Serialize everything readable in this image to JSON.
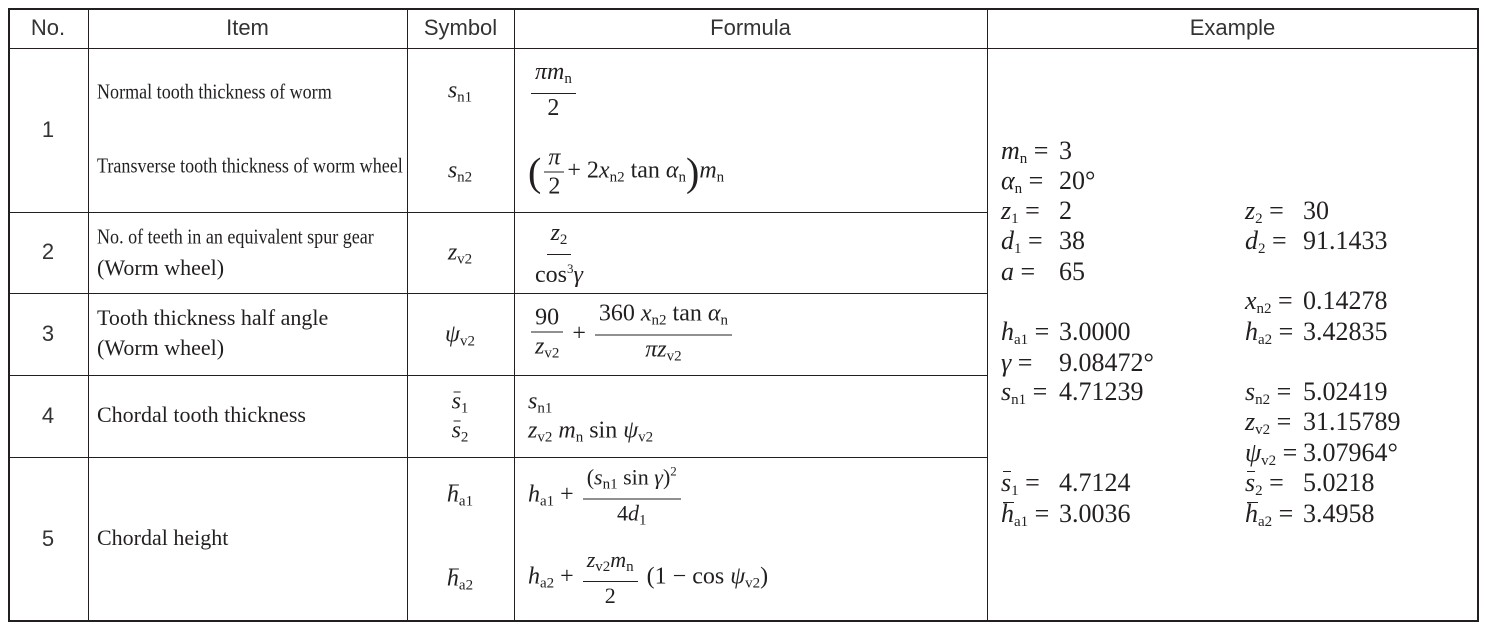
{
  "header": {
    "no": "No.",
    "item": "Item",
    "symbol": "Symbol",
    "formula": "Formula",
    "example": "Example"
  },
  "rows": [
    {
      "no": "1",
      "items": [
        "Normal tooth thickness of worm",
        "Transverse tooth thickness of worm wheel"
      ],
      "symbols": [
        [
          "s",
          "n1"
        ],
        [
          "s",
          "n2"
        ]
      ]
    },
    {
      "no": "2",
      "items": [
        "No. of teeth in an equivalent spur gear",
        "(Worm wheel)"
      ],
      "symbols": [
        [
          "z",
          "v2"
        ]
      ]
    },
    {
      "no": "3",
      "items": [
        "Tooth thickness half angle",
        "(Worm wheel)"
      ],
      "symbols": [
        [
          "ψ",
          "v2"
        ]
      ]
    },
    {
      "no": "4",
      "items": [
        "Chordal tooth thickness"
      ],
      "symbols": [
        [
          "s",
          "1"
        ],
        [
          "s",
          "2"
        ]
      ]
    },
    {
      "no": "5",
      "items": [
        "Chordal height"
      ],
      "symbols": [
        [
          "h",
          "a1"
        ],
        [
          "h",
          "a2"
        ]
      ]
    }
  ],
  "formulas": {
    "f1": [
      "πm",
      "n",
      "2"
    ],
    "f2": [
      "(",
      "π",
      "2",
      "+ 2",
      "x",
      "n2",
      " tan ",
      "α",
      "n",
      ")",
      "m",
      "n"
    ],
    "f3": [
      "z",
      "2",
      "cos",
      "3",
      "γ"
    ],
    "f4": [
      "90",
      "z",
      "v2",
      "+",
      "360",
      "x",
      "n2",
      " tan ",
      "α",
      "n",
      "πz",
      "v2"
    ],
    "f5": [
      "s",
      "n1"
    ],
    "f6": [
      "z",
      "v2",
      "m",
      "n",
      " sin ",
      "ψ",
      "v2"
    ],
    "f7": [
      "h",
      "a1",
      "+",
      "(",
      "s",
      "n1",
      " sin ",
      "γ",
      ")",
      "2",
      "4",
      "d",
      "1"
    ],
    "f8": [
      "h",
      "a2",
      "+",
      "z",
      "v2",
      "m",
      "n",
      "2",
      "(1 − cos ",
      "ψ",
      "v2",
      ")"
    ]
  },
  "example": {
    "left": [
      {
        "s": "m",
        "sub": "n",
        "v": "3"
      },
      {
        "s": "α",
        "sub": "n",
        "v": "20°"
      },
      {
        "s": "z",
        "sub": "1",
        "v": "2"
      },
      {
        "s": "d",
        "sub": "1",
        "v": "38"
      },
      {
        "s": "a",
        "sub": "",
        "v": "65"
      },
      {
        "s": "h",
        "sub": "a1",
        "v": "3.0000"
      },
      {
        "s": "γ",
        "sub": "",
        "v": "9.08472°"
      },
      {
        "s": "s",
        "sub": "n1",
        "v": "4.71239"
      },
      {
        "s": "s",
        "sub": "1",
        "v": "4.7124",
        "bar": true
      },
      {
        "s": "h",
        "sub": "a1",
        "v": "3.0036",
        "bar": true
      }
    ],
    "right": [
      {
        "s": "z",
        "sub": "2",
        "v": "30"
      },
      {
        "s": "d",
        "sub": "2",
        "v": "91.1433"
      },
      {
        "s": "x",
        "sub": "n2",
        "v": "0.14278"
      },
      {
        "s": "h",
        "sub": "a2",
        "v": "3.42835"
      },
      {
        "s": "s",
        "sub": "n2",
        "v": "5.02419"
      },
      {
        "s": "z",
        "sub": "v2",
        "v": "31.15789"
      },
      {
        "s": "ψ",
        "sub": "v2",
        "v": "3.07964°"
      },
      {
        "s": "s",
        "sub": "2",
        "v": "5.0218",
        "bar": true
      },
      {
        "s": "h",
        "sub": "a2",
        "v": "3.4958",
        "bar": true
      }
    ]
  }
}
